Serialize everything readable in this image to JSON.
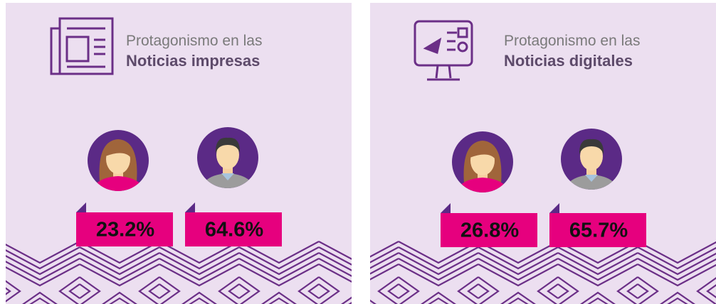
{
  "panels": [
    {
      "title_line1": "Protagonismo en las",
      "title_line2": "Noticias impresas",
      "stats": [
        "23.2%",
        "64.6%"
      ]
    },
    {
      "title_line1": "Protagonismo en las",
      "title_line2": "Noticias digitales",
      "stats": [
        "26.8%",
        "65.7%"
      ]
    }
  ]
}
